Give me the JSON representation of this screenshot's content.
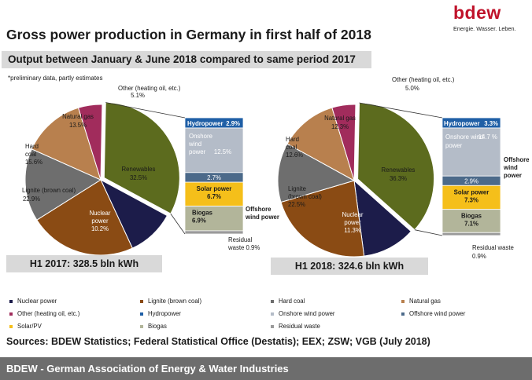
{
  "title": "Gross power production in Germany in first half of 2018",
  "subtitle": "Output between January & June 2018 compared to same period 2017",
  "note": "*preliminary data, partly estimates",
  "logo": {
    "text": "bdew",
    "tagline": "Energie. Wasser. Leben."
  },
  "colors": {
    "nuclear": "#1c1c4a",
    "lignite": "#8a4b14",
    "hard_coal": "#6e6e6e",
    "natural_gas": "#b8804e",
    "other": "#a12c5c",
    "renewables": "#5c6b1e",
    "hydropower": "#1f5fa6",
    "onshore_wind": "#b4bcc8",
    "offshore_wind": "#4c6a8a",
    "solar": "#f5bf1a",
    "biogas": "#b2b59a",
    "residual_waste": "#9a9a9a"
  },
  "chart_data": [
    {
      "type": "pie",
      "title": "H1 2017: 328.5 bln kWh",
      "slices": [
        {
          "name": "Renewables",
          "value": 32.5
        },
        {
          "name": "Nuclear power",
          "value": 10.2
        },
        {
          "name": "Lignite (brown coal)",
          "value": 22.9
        },
        {
          "name": "Hard coal",
          "value": 15.6
        },
        {
          "name": "Natural gas",
          "value": 13.5
        },
        {
          "name": "Other (heating oil, etc.)",
          "value": 5.1
        }
      ],
      "renewables_breakdown": [
        {
          "name": "Hydropower",
          "value": 2.9
        },
        {
          "name": "Onshore wind power",
          "value": 12.5
        },
        {
          "name": "Offshore wind power",
          "value": 2.7
        },
        {
          "name": "Solar power",
          "value": 6.7
        },
        {
          "name": "Biogas",
          "value": 6.9
        },
        {
          "name": "Residual waste",
          "value": 0.9
        }
      ]
    },
    {
      "type": "pie",
      "title": "H1 2018: 324.6 bln kWh",
      "slices": [
        {
          "name": "Renewables",
          "value": 36.3
        },
        {
          "name": "Nuclear power",
          "value": 11.3
        },
        {
          "name": "Lignite (brown coal)",
          "value": 22.5
        },
        {
          "name": "Hard coal",
          "value": 12.6
        },
        {
          "name": "Natural gas",
          "value": 12.3
        },
        {
          "name": "Other (heating oil, etc.)",
          "value": 5.0
        }
      ],
      "renewables_breakdown": [
        {
          "name": "Hydropower",
          "value": 3.3
        },
        {
          "name": "Onshore wind power",
          "value": 14.7
        },
        {
          "name": "Offshore wind power",
          "value": 2.9
        },
        {
          "name": "Solar power",
          "value": 7.3
        },
        {
          "name": "Biogas",
          "value": 7.1
        },
        {
          "name": "Residual waste",
          "value": 0.9
        }
      ]
    }
  ],
  "labels_2017": {
    "other": [
      "Other (heating oil, etc.)",
      "5.1%"
    ],
    "natural_gas": [
      "Natural gas",
      "13.5%"
    ],
    "hard_coal": [
      "Hard",
      "coal",
      "15.6%"
    ],
    "renewables": [
      "Renewables",
      "32.5%"
    ],
    "lignite": [
      "Lignite (brown coal)",
      "22.9%"
    ],
    "nuclear": [
      "Nuclear",
      "power",
      "10.2%"
    ],
    "hydropower": [
      "Hydropower",
      "2.9%"
    ],
    "onshore": [
      "Onshore",
      "wind",
      "power",
      "12.5%"
    ],
    "offshore_value": "2.7%",
    "solar": [
      "Solar power",
      "6.7%"
    ],
    "biogas": [
      "Biogas",
      "6.9%"
    ],
    "offshore_label": [
      "Offshore",
      "wind power"
    ],
    "residual": [
      "Residual",
      "waste 0.9%"
    ]
  },
  "labels_2018": {
    "other": [
      "Other (heating oil, etc.)",
      "5.0%"
    ],
    "natural_gas": [
      "Natural gas",
      "12.3%"
    ],
    "hard_coal": [
      "Hard",
      "coal",
      "12.6%"
    ],
    "renewables": [
      "Renewables",
      "36.3%"
    ],
    "lignite": [
      "Lignite",
      "(brown coal)",
      "22.5%"
    ],
    "nuclear": [
      "Nuclear",
      "power",
      "11.3%"
    ],
    "hydropower": [
      "Hydropower",
      "3.3%"
    ],
    "onshore": [
      "Onshore wind",
      "power",
      "14.7 %"
    ],
    "offshore_value": "2.9%",
    "solar": [
      "Solar power",
      "7.3%"
    ],
    "biogas": [
      "Biogas",
      "7.1%"
    ],
    "offshore_label": [
      "Offshore",
      "wind",
      "power"
    ],
    "residual": [
      "Residual waste",
      "0.9%"
    ]
  },
  "legend": [
    {
      "label": "Nuclear power",
      "key": "nuclear"
    },
    {
      "label": "Lignite (brown coal)",
      "key": "lignite"
    },
    {
      "label": "Hard coal",
      "key": "hard_coal"
    },
    {
      "label": "Natural gas",
      "key": "natural_gas"
    },
    {
      "label": "Other (heating oil, etc.)",
      "key": "other"
    },
    {
      "label": "Hydropower",
      "key": "hydropower"
    },
    {
      "label": "Onshore wind power",
      "key": "onshore_wind"
    },
    {
      "label": "Offshore wind power",
      "key": "offshore_wind"
    },
    {
      "label": "Solar/PV",
      "key": "solar"
    },
    {
      "label": "Biogas",
      "key": "biogas"
    },
    {
      "label": "Residual waste",
      "key": "residual_waste"
    }
  ],
  "sources": "Sources: BDEW Statistics; Federal Statistical Office (Destatis); EEX; ZSW; VGB (July 2018)",
  "footer": "BDEW - German Association of Energy & Water Industries"
}
